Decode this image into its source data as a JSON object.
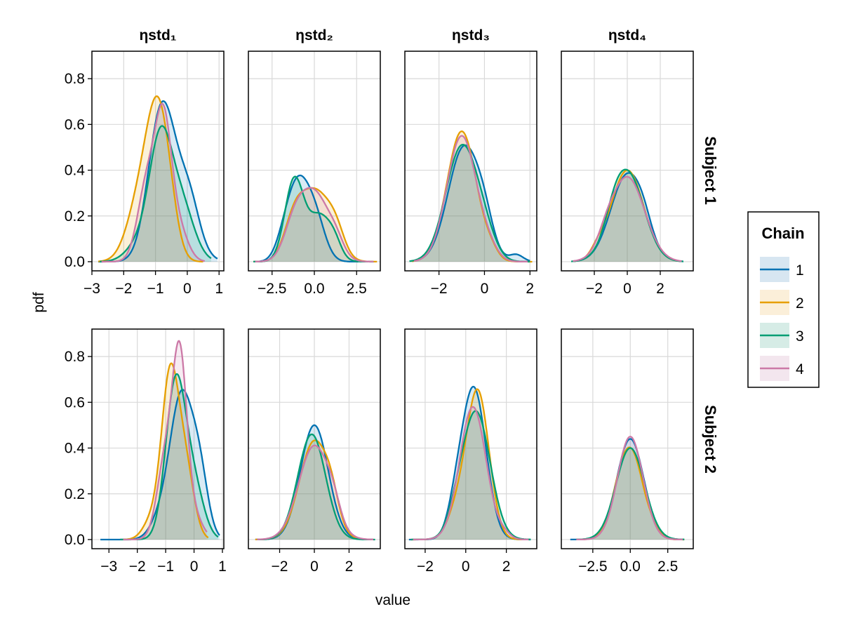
{
  "chart_data": {
    "type": "density-grid",
    "xlabel": "value",
    "ylabel": "pdf",
    "ylim": [
      -0.04,
      0.92
    ],
    "yticks": [
      0.0,
      0.2,
      0.4,
      0.6,
      0.8
    ],
    "ytick_labels": [
      "0.0",
      "0.2",
      "0.4",
      "0.6",
      "0.8"
    ],
    "columns": [
      "ηstd₁",
      "ηstd₂",
      "ηstd₃",
      "ηstd₄"
    ],
    "rows": [
      "Subject 1",
      "Subject 2"
    ],
    "legend": {
      "title": "Chain",
      "placement": "right",
      "entries": [
        {
          "label": "1",
          "color": "#0072B2",
          "fill": "#d7e6f1"
        },
        {
          "label": "2",
          "color": "#E69F00",
          "fill": "#fbefd9"
        },
        {
          "label": "3",
          "color": "#009E73",
          "fill": "#d6ece6"
        },
        {
          "label": "4",
          "color": "#CC79A7",
          "fill": "#f3e6ee"
        }
      ]
    },
    "panels": [
      {
        "row": 0,
        "col": 0,
        "xlim": [
          -3.0,
          1.15
        ],
        "xticks": [
          -3,
          -2,
          -1,
          0,
          1
        ],
        "xtick_labels": [
          "−3",
          "−2",
          "−1",
          "0",
          "1"
        ],
        "chains": [
          {
            "peaks": [
              [
                -0.85,
                0.4,
                0.55
              ],
              [
                -0.3,
                0.5,
                0.25
              ],
              [
                0.1,
                0.3,
                0.12
              ]
            ],
            "range": [
              -2.8,
              0.95
            ]
          },
          {
            "peaks": [
              [
                -0.95,
                0.35,
                0.55
              ],
              [
                -1.5,
                0.4,
                0.25
              ],
              [
                -0.6,
                0.3,
                0.15
              ]
            ],
            "range": [
              -2.8,
              0.5
            ]
          },
          {
            "peaks": [
              [
                -0.85,
                0.35,
                0.5
              ],
              [
                -0.2,
                0.4,
                0.25
              ],
              [
                -1.5,
                0.4,
                0.08
              ]
            ],
            "range": [
              -2.75,
              0.75
            ]
          },
          {
            "peaks": [
              [
                -0.75,
                0.25,
                0.55
              ],
              [
                -1.25,
                0.3,
                0.35
              ],
              [
                -0.3,
                0.3,
                0.15
              ]
            ],
            "range": [
              -2.7,
              0.55
            ]
          }
        ]
      },
      {
        "row": 0,
        "col": 1,
        "xlim": [
          -3.9,
          3.9
        ],
        "xticks": [
          -2.5,
          0.0,
          2.5
        ],
        "xtick_labels": [
          "−2.5",
          "0.0",
          "2.5"
        ],
        "chains": [
          {
            "peaks": [
              [
                -1.0,
                0.6,
                0.3
              ],
              [
                0.0,
                0.6,
                0.2
              ],
              [
                -1.8,
                0.5,
                0.08
              ]
            ],
            "range": [
              -3.6,
              2.6
            ]
          },
          {
            "peaks": [
              [
                0.1,
                0.9,
                0.3
              ],
              [
                -1.2,
                0.6,
                0.15
              ],
              [
                1.3,
                0.5,
                0.08
              ]
            ],
            "range": [
              -3.6,
              3.7
            ]
          },
          {
            "peaks": [
              [
                -1.2,
                0.55,
                0.35
              ],
              [
                0.3,
                0.7,
                0.2
              ],
              [
                1.2,
                0.4,
                0.05
              ]
            ],
            "range": [
              -3.6,
              3.5
            ]
          },
          {
            "peaks": [
              [
                0.0,
                0.9,
                0.3
              ],
              [
                -1.2,
                0.6,
                0.12
              ],
              [
                1.3,
                0.45,
                0.05
              ]
            ],
            "range": [
              -3.5,
              3.5
            ]
          }
        ]
      },
      {
        "row": 0,
        "col": 2,
        "xlim": [
          -3.5,
          2.3
        ],
        "xticks": [
          -2,
          0,
          2
        ],
        "xtick_labels": [
          "−2",
          "0",
          "2"
        ],
        "chains": [
          {
            "peaks": [
              [
                -0.9,
                0.7,
                0.5
              ],
              [
                0.0,
                0.4,
                0.1
              ],
              [
                1.4,
                0.3,
                0.03
              ]
            ],
            "range": [
              -3.2,
              2.0
            ]
          },
          {
            "peaks": [
              [
                -1.0,
                0.65,
                0.57
              ],
              [
                0.3,
                0.3,
                0.03
              ]
            ],
            "range": [
              -3.2,
              2.1
            ]
          },
          {
            "peaks": [
              [
                -1.0,
                0.7,
                0.5
              ],
              [
                0.0,
                0.5,
                0.08
              ]
            ],
            "range": [
              -3.3,
              2.0
            ]
          },
          {
            "peaks": [
              [
                -1.0,
                0.65,
                0.55
              ],
              [
                0.2,
                0.4,
                0.04
              ]
            ],
            "range": [
              -3.1,
              1.9
            ]
          }
        ]
      },
      {
        "row": 0,
        "col": 3,
        "xlim": [
          -4.0,
          4.0
        ],
        "xticks": [
          -2,
          0,
          2
        ],
        "xtick_labels": [
          "−2",
          "0",
          "2"
        ],
        "chains": [
          {
            "peaks": [
              [
                0.0,
                1.0,
                0.38
              ],
              [
                1.0,
                0.5,
                0.05
              ]
            ],
            "range": [
              -3.3,
              3.4
            ]
          },
          {
            "peaks": [
              [
                0.0,
                1.0,
                0.4
              ],
              [
                -1.8,
                0.4,
                0.03
              ]
            ],
            "range": [
              -3.3,
              3.3
            ]
          },
          {
            "peaks": [
              [
                0.0,
                1.0,
                0.39
              ],
              [
                -0.8,
                0.5,
                0.04
              ]
            ],
            "range": [
              -3.4,
              3.4
            ]
          },
          {
            "peaks": [
              [
                0.0,
                1.05,
                0.37
              ],
              [
                -1.3,
                0.5,
                0.04
              ]
            ],
            "range": [
              -3.3,
              3.3
            ]
          }
        ]
      },
      {
        "row": 1,
        "col": 0,
        "xlim": [
          -3.6,
          1.05
        ],
        "xticks": [
          -3,
          -2,
          -1,
          0,
          1
        ],
        "xtick_labels": [
          "−3",
          "−2",
          "−1",
          "0",
          "1"
        ],
        "chains": [
          {
            "peaks": [
              [
                -0.45,
                0.4,
                0.62
              ],
              [
                0.2,
                0.3,
                0.25
              ],
              [
                -1.2,
                0.35,
                0.08
              ]
            ],
            "range": [
              -3.3,
              0.9
            ]
          },
          {
            "peaks": [
              [
                -0.85,
                0.3,
                0.7
              ],
              [
                -0.3,
                0.3,
                0.3
              ],
              [
                -1.5,
                0.3,
                0.08
              ]
            ],
            "range": [
              -2.5,
              0.5
            ]
          },
          {
            "peaks": [
              [
                -0.65,
                0.35,
                0.68
              ],
              [
                0.0,
                0.35,
                0.22
              ]
            ],
            "range": [
              -2.6,
              0.85
            ]
          },
          {
            "peaks": [
              [
                -0.5,
                0.25,
                0.75
              ],
              [
                -1.0,
                0.3,
                0.35
              ],
              [
                0.0,
                0.3,
                0.1
              ]
            ],
            "range": [
              -2.5,
              0.45
            ]
          }
        ]
      },
      {
        "row": 1,
        "col": 1,
        "xlim": [
          -3.8,
          3.8
        ],
        "xticks": [
          -2,
          0,
          2
        ],
        "xtick_labels": [
          "−2",
          "0",
          "2"
        ],
        "chains": [
          {
            "peaks": [
              [
                0.0,
                0.8,
                0.5
              ]
            ],
            "range": [
              -3.4,
              3.3
            ]
          },
          {
            "peaks": [
              [
                0.0,
                0.85,
                0.43
              ],
              [
                1.0,
                0.4,
                0.08
              ]
            ],
            "range": [
              -3.4,
              3.3
            ]
          },
          {
            "peaks": [
              [
                -0.15,
                0.8,
                0.46
              ]
            ],
            "range": [
              -3.3,
              3.5
            ]
          },
          {
            "peaks": [
              [
                0.0,
                0.9,
                0.41
              ],
              [
                1.1,
                0.4,
                0.06
              ]
            ],
            "range": [
              -3.3,
              3.4
            ]
          }
        ]
      },
      {
        "row": 1,
        "col": 2,
        "xlim": [
          -3.0,
          3.5
        ],
        "xticks": [
          -2,
          0,
          2
        ],
        "xtick_labels": [
          "−2",
          "0",
          "2"
        ],
        "chains": [
          {
            "peaks": [
              [
                0.4,
                0.6,
                0.66
              ],
              [
                -0.5,
                0.4,
                0.1
              ]
            ],
            "range": [
              -2.8,
              3.2
            ]
          },
          {
            "peaks": [
              [
                0.6,
                0.55,
                0.64
              ],
              [
                -0.4,
                0.5,
                0.12
              ]
            ],
            "range": [
              -2.7,
              3.1
            ]
          },
          {
            "peaks": [
              [
                0.5,
                0.7,
                0.56
              ],
              [
                -0.5,
                0.4,
                0.05
              ]
            ],
            "range": [
              -2.7,
              3.2
            ]
          },
          {
            "peaks": [
              [
                0.35,
                0.65,
                0.58
              ],
              [
                1.9,
                0.3,
                0.02
              ]
            ],
            "range": [
              -2.6,
              3.1
            ]
          }
        ]
      },
      {
        "row": 1,
        "col": 3,
        "xlim": [
          -4.6,
          4.2
        ],
        "xticks": [
          -2.5,
          0.0,
          2.5
        ],
        "xtick_labels": [
          "−2.5",
          "0.0",
          "2.5"
        ],
        "chains": [
          {
            "peaks": [
              [
                0.0,
                0.9,
                0.44
              ]
            ],
            "range": [
              -4.0,
              3.6
            ]
          },
          {
            "peaks": [
              [
                -0.3,
                0.8,
                0.34
              ],
              [
                0.5,
                0.6,
                0.12
              ],
              [
                1.5,
                0.5,
                0.04
              ]
            ],
            "range": [
              -3.6,
              3.6
            ]
          },
          {
            "peaks": [
              [
                0.0,
                0.95,
                0.4
              ]
            ],
            "range": [
              -3.6,
              3.6
            ]
          },
          {
            "peaks": [
              [
                0.0,
                0.85,
                0.45
              ]
            ],
            "range": [
              -3.6,
              3.5
            ]
          }
        ]
      }
    ]
  }
}
